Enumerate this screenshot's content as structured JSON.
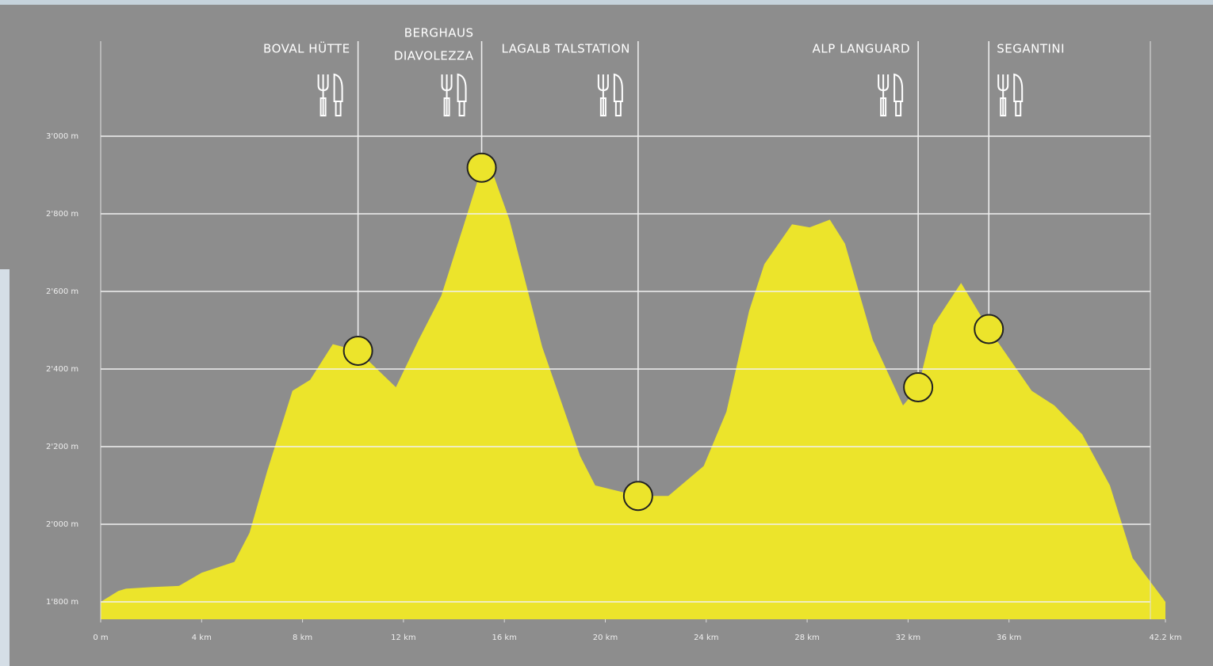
{
  "chart_data": {
    "type": "area",
    "x": [
      0,
      0.7,
      1,
      2,
      3.1,
      4,
      5.3,
      5.9,
      6.6,
      7.6,
      8.3,
      9.2,
      10.2,
      11.7,
      12.6,
      13.5,
      14.4,
      15.1,
      15.6,
      16.2,
      17.5,
      19,
      19.6,
      21.3,
      22.5,
      23.9,
      24.8,
      25.7,
      26.3,
      27.4,
      28.1,
      28.9,
      29.5,
      30.6,
      31.8,
      32.4,
      33,
      34.1,
      35.2,
      36.9,
      37.8,
      38.9,
      40,
      40.9,
      42.2
    ],
    "values": [
      1800,
      1828,
      1834,
      1838,
      1841,
      1875,
      1903,
      1978,
      2137,
      2344,
      2372,
      2464,
      2447,
      2353,
      2475,
      2589,
      2773,
      2919,
      2894,
      2785,
      2457,
      2176,
      2100,
      2073,
      2073,
      2150,
      2290,
      2550,
      2670,
      2773,
      2765,
      2785,
      2723,
      2475,
      2306,
      2353,
      2513,
      2622,
      2503,
      2344,
      2306,
      2232,
      2100,
      1913,
      1800
    ],
    "color": "#ece42b",
    "xlim": [
      0,
      42.2
    ],
    "ylim": [
      1800,
      3000
    ],
    "xticks": [
      {
        "value": 0,
        "label": "0 m"
      },
      {
        "value": 4,
        "label": "4 km"
      },
      {
        "value": 8,
        "label": "8 km"
      },
      {
        "value": 12,
        "label": "12 km"
      },
      {
        "value": 16,
        "label": "16 km"
      },
      {
        "value": 20,
        "label": "20 km"
      },
      {
        "value": 24,
        "label": "24 km"
      },
      {
        "value": 28,
        "label": "28 km"
      },
      {
        "value": 32,
        "label": "32 km"
      },
      {
        "value": 36,
        "label": "36 km"
      },
      {
        "value": 42.2,
        "label": "42.2 km"
      }
    ],
    "yticks": [
      {
        "value": 1800,
        "label": "1'800 m"
      },
      {
        "value": 2000,
        "label": "2'000 m"
      },
      {
        "value": 2200,
        "label": "2'200 m"
      },
      {
        "value": 2400,
        "label": "2'400 m"
      },
      {
        "value": 2600,
        "label": "2'600 m"
      },
      {
        "value": 2800,
        "label": "2'800 m"
      },
      {
        "value": 3000,
        "label": "3'000 m"
      }
    ],
    "grid": true,
    "annotations": [
      {
        "lines": [
          "BOVAL HÜTTE"
        ],
        "km": 10.2,
        "elevation": 2447,
        "side": "left"
      },
      {
        "lines": [
          "BERGHAUS",
          "DIAVOLEZZA"
        ],
        "km": 15.1,
        "elevation": 2919,
        "side": "left"
      },
      {
        "lines": [
          "LAGALB TALSTATION"
        ],
        "km": 21.3,
        "elevation": 2073,
        "side": "left"
      },
      {
        "lines": [
          "ALP LANGUARD"
        ],
        "km": 32.4,
        "elevation": 2353,
        "side": "left"
      },
      {
        "lines": [
          "SEGANTINI"
        ],
        "km": 35.2,
        "elevation": 2503,
        "side": "right"
      }
    ]
  }
}
